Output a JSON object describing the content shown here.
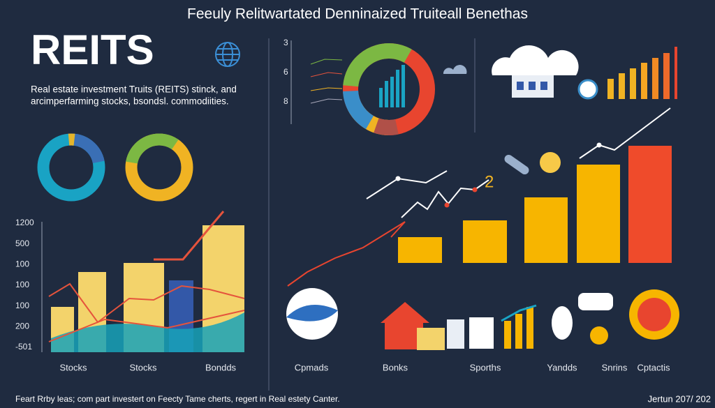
{
  "header": {
    "title": "Feeuly Relitwartated Denninaized Truiteall Benethas"
  },
  "hero": {
    "heading": "REITS",
    "description": [
      "Real estate investment Truits (REITS) stinck, and",
      "arcimperfarming stocks, bsondsl. commodiities."
    ]
  },
  "left_chart": {
    "axis_labels": [
      "1200",
      "500",
      "100",
      "100",
      "100",
      "200",
      "-501"
    ]
  },
  "donut_axis": {
    "labels": [
      "3",
      "6",
      "8"
    ]
  },
  "line_marker": "2",
  "bottom_labels": [
    "Stocks",
    "Stocks",
    "Bondds",
    "Cpmads",
    "Bonks",
    "Sporths",
    "Yandds",
    "Snrins",
    "Cptactis"
  ],
  "footer": {
    "note": "Feart Rrby leas; com part investert on Feecty Tame cherts, regert in Real estety Canter.",
    "date": "Jertun 207/ 202"
  }
}
